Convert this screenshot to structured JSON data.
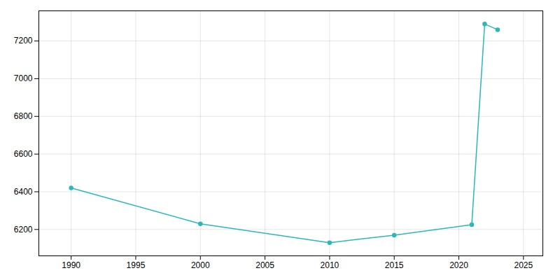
{
  "chart_data": {
    "type": "line",
    "x": [
      1990,
      2000,
      2010,
      2015,
      2021,
      2022,
      2023
    ],
    "values": [
      6420,
      6230,
      6130,
      6170,
      6225,
      7290,
      7260
    ],
    "color": "#2ab8ba",
    "marker": "circle",
    "xlim": [
      1987.5,
      2026.5
    ],
    "ylim": [
      6060,
      7360
    ],
    "xticks": [
      1990,
      1995,
      2000,
      2005,
      2010,
      2015,
      2020,
      2025
    ],
    "yticks": [
      6200,
      6400,
      6600,
      6800,
      7000,
      7200
    ],
    "grid": true
  }
}
